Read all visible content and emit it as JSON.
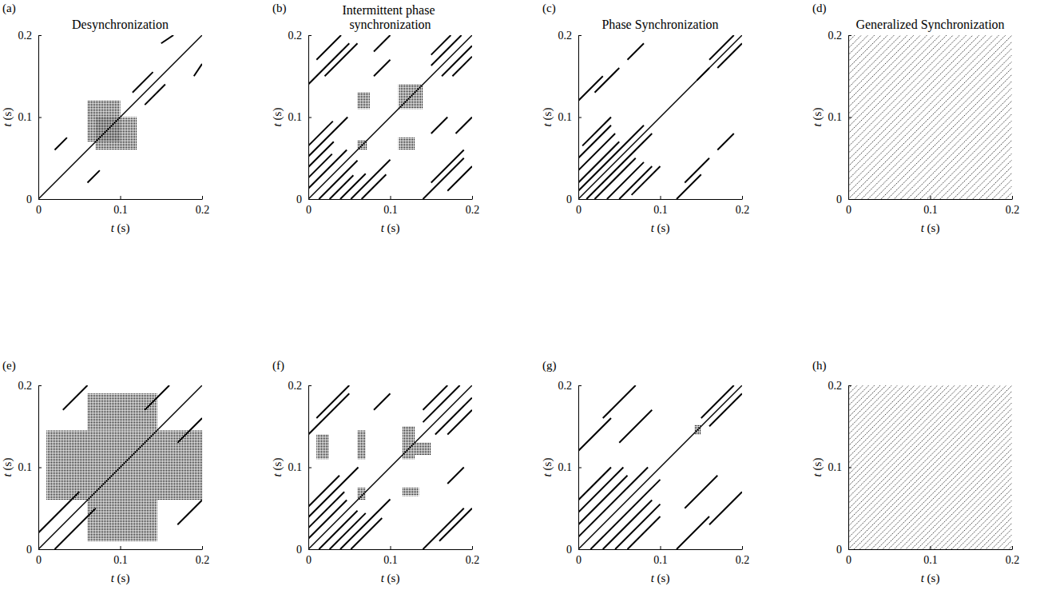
{
  "chart_data": [
    {
      "type": "recurrence",
      "panel_label": "(a)",
      "title": "Desynchronization",
      "x_label": "t (s)",
      "y_label": "t (s)",
      "xlim": [
        0,
        0.2
      ],
      "ylim": [
        0,
        0.2
      ],
      "xticks": [
        0,
        0.1,
        0.2
      ],
      "yticks": [
        0,
        0.1,
        0.2
      ],
      "line_style": "solid",
      "diagonal_offsets": [
        0
      ],
      "segments": [
        [
          0.115,
          0.13,
          0.14,
          0.155
        ],
        [
          0.13,
          0.115,
          0.155,
          0.14
        ],
        [
          0.02,
          0.06,
          0.035,
          0.075
        ],
        [
          0.06,
          0.02,
          0.075,
          0.035
        ],
        [
          0.15,
          0.19,
          0.165,
          0.2
        ],
        [
          0.19,
          0.15,
          0.2,
          0.165
        ]
      ],
      "clusters": [
        [
          0.06,
          0.07,
          0.1,
          0.12
        ],
        [
          0.07,
          0.06,
          0.12,
          0.1
        ]
      ]
    },
    {
      "type": "recurrence",
      "panel_label": "(b)",
      "title": "Intermittent phase synchronization",
      "x_label": "t (s)",
      "y_label": "t (s)",
      "xlim": [
        0,
        0.2
      ],
      "ylim": [
        0,
        0.2
      ],
      "xticks": [
        0,
        0.1,
        0.2
      ],
      "yticks": [
        0,
        0.1,
        0.2
      ],
      "line_style": "solid",
      "diagonal_offsets": [
        0
      ],
      "segments": [
        [
          0.013,
          0,
          0.06,
          0.047
        ],
        [
          0,
          0.013,
          0.047,
          0.06
        ],
        [
          0.026,
          0,
          0.055,
          0.029
        ],
        [
          0,
          0.026,
          0.029,
          0.055
        ],
        [
          0.039,
          0,
          0.07,
          0.031
        ],
        [
          0,
          0.039,
          0.031,
          0.07
        ],
        [
          0.052,
          0,
          0.1,
          0.048
        ],
        [
          0,
          0.052,
          0.048,
          0.1
        ],
        [
          0.065,
          0,
          0.095,
          0.03
        ],
        [
          0,
          0.065,
          0.03,
          0.095
        ],
        [
          0.163,
          0.15,
          0.2,
          0.187
        ],
        [
          0.15,
          0.163,
          0.187,
          0.2
        ],
        [
          0.176,
          0.15,
          0.2,
          0.174
        ],
        [
          0.15,
          0.176,
          0.174,
          0.2
        ],
        [
          0,
          0.14,
          0.05,
          0.19
        ],
        [
          0.01,
          0.17,
          0.04,
          0.2
        ],
        [
          0.02,
          0.15,
          0.06,
          0.19
        ],
        [
          0.14,
          0,
          0.19,
          0.05
        ],
        [
          0.17,
          0.01,
          0.2,
          0.04
        ],
        [
          0.15,
          0.02,
          0.19,
          0.06
        ],
        [
          0.08,
          0.18,
          0.1,
          0.2
        ],
        [
          0.18,
          0.08,
          0.2,
          0.1
        ],
        [
          0.08,
          0.15,
          0.1,
          0.17
        ],
        [
          0.15,
          0.08,
          0.17,
          0.1
        ]
      ],
      "clusters": [
        [
          0.11,
          0.11,
          0.14,
          0.14
        ],
        [
          0.06,
          0.11,
          0.075,
          0.13
        ],
        [
          0.11,
          0.06,
          0.13,
          0.075
        ],
        [
          0.06,
          0.06,
          0.072,
          0.072
        ]
      ]
    },
    {
      "type": "recurrence",
      "panel_label": "(c)",
      "title": "Phase Synchronization",
      "x_label": "t (s)",
      "y_label": "t (s)",
      "xlim": [
        0,
        0.2
      ],
      "ylim": [
        0,
        0.2
      ],
      "xticks": [
        0,
        0.1,
        0.2
      ],
      "yticks": [
        0,
        0.1,
        0.2
      ],
      "line_style": "solid",
      "diagonal_offsets": [
        0
      ],
      "segments": [
        [
          0.01,
          0,
          0.09,
          0.08
        ],
        [
          0,
          0.01,
          0.08,
          0.09
        ],
        [
          0.02,
          0,
          0.07,
          0.05
        ],
        [
          0,
          0.02,
          0.05,
          0.07
        ],
        [
          0.035,
          0,
          0.08,
          0.045
        ],
        [
          0,
          0.035,
          0.045,
          0.08
        ],
        [
          0.05,
          0,
          0.09,
          0.04
        ],
        [
          0,
          0.05,
          0.04,
          0.09
        ],
        [
          0.065,
          0.005,
          0.1,
          0.04
        ],
        [
          0.005,
          0.065,
          0.04,
          0.1
        ],
        [
          0,
          0.12,
          0.03,
          0.15
        ],
        [
          0.12,
          0,
          0.15,
          0.03
        ],
        [
          0.02,
          0.13,
          0.05,
          0.16
        ],
        [
          0.13,
          0.02,
          0.16,
          0.05
        ],
        [
          0.16,
          0.17,
          0.19,
          0.2
        ],
        [
          0.17,
          0.16,
          0.2,
          0.19
        ],
        [
          0.17,
          0.06,
          0.19,
          0.08
        ],
        [
          0.06,
          0.17,
          0.08,
          0.19
        ],
        [
          0.145,
          0.145,
          0.16,
          0.16
        ]
      ]
    },
    {
      "type": "recurrence",
      "panel_label": "(d)",
      "title": "Generalized Synchronization",
      "x_label": "t (s)",
      "y_label": "t (s)",
      "xlim": [
        0,
        0.2
      ],
      "ylim": [
        0,
        0.2
      ],
      "xticks": [
        0,
        0.1,
        0.2
      ],
      "yticks": [
        0,
        0.1,
        0.2
      ],
      "line_style": "dotted",
      "diagonal_offsets": [
        -0.192,
        -0.184,
        -0.176,
        -0.168,
        -0.16,
        -0.152,
        -0.144,
        -0.136,
        -0.128,
        -0.12,
        -0.112,
        -0.104,
        -0.096,
        -0.088,
        -0.08,
        -0.072,
        -0.064,
        -0.056,
        -0.048,
        -0.04,
        -0.032,
        -0.024,
        -0.016,
        -0.008,
        0,
        0.008,
        0.016,
        0.024,
        0.032,
        0.04,
        0.048,
        0.056,
        0.064,
        0.072,
        0.08,
        0.088,
        0.096,
        0.104,
        0.112,
        0.12,
        0.128,
        0.136,
        0.144,
        0.152,
        0.16,
        0.168,
        0.176,
        0.184,
        0.192
      ]
    },
    {
      "type": "recurrence",
      "panel_label": "(e)",
      "x_label": "t (s)",
      "y_label": "t (s)",
      "xlim": [
        0,
        0.2
      ],
      "ylim": [
        0,
        0.2
      ],
      "xticks": [
        0,
        0.1,
        0.2
      ],
      "yticks": [
        0,
        0.1,
        0.2
      ],
      "line_style": "solid",
      "diagonal_offsets": [
        0
      ],
      "segments": [
        [
          0,
          0.02,
          0.05,
          0.07
        ],
        [
          0.02,
          0,
          0.07,
          0.05
        ],
        [
          0.13,
          0.17,
          0.16,
          0.2
        ],
        [
          0.17,
          0.13,
          0.2,
          0.16
        ],
        [
          0.03,
          0.17,
          0.06,
          0.2
        ],
        [
          0.17,
          0.03,
          0.2,
          0.06
        ]
      ],
      "clusters": [
        [
          0.01,
          0.06,
          0.2,
          0.145
        ],
        [
          0.06,
          0.01,
          0.145,
          0.06
        ],
        [
          0.06,
          0.145,
          0.145,
          0.19
        ]
      ]
    },
    {
      "type": "recurrence",
      "panel_label": "(f)",
      "x_label": "t (s)",
      "y_label": "t (s)",
      "xlim": [
        0,
        0.2
      ],
      "ylim": [
        0,
        0.2
      ],
      "xticks": [
        0,
        0.1,
        0.2
      ],
      "yticks": [
        0,
        0.1,
        0.2
      ],
      "line_style": "solid",
      "diagonal_offsets": [
        0
      ],
      "segments": [
        [
          0.013,
          0,
          0.06,
          0.047
        ],
        [
          0,
          0.013,
          0.047,
          0.06
        ],
        [
          0.026,
          0,
          0.07,
          0.044
        ],
        [
          0,
          0.026,
          0.044,
          0.07
        ],
        [
          0.039,
          0,
          0.1,
          0.061
        ],
        [
          0,
          0.039,
          0.061,
          0.1
        ],
        [
          0.052,
          0,
          0.09,
          0.038
        ],
        [
          0,
          0.052,
          0.038,
          0.09
        ],
        [
          0.155,
          0.14,
          0.2,
          0.185
        ],
        [
          0.14,
          0.155,
          0.185,
          0.2
        ],
        [
          0.17,
          0.14,
          0.2,
          0.17
        ],
        [
          0.14,
          0.17,
          0.17,
          0.2
        ],
        [
          0.14,
          0,
          0.19,
          0.05
        ],
        [
          0,
          0.14,
          0.05,
          0.19
        ],
        [
          0.16,
          0.01,
          0.2,
          0.05
        ],
        [
          0.01,
          0.16,
          0.05,
          0.2
        ],
        [
          0.08,
          0.17,
          0.1,
          0.19
        ],
        [
          0.17,
          0.08,
          0.19,
          0.1
        ]
      ],
      "clusters": [
        [
          0.01,
          0.11,
          0.025,
          0.14
        ],
        [
          0.06,
          0.11,
          0.07,
          0.145
        ],
        [
          0.115,
          0.11,
          0.13,
          0.15
        ],
        [
          0.13,
          0.115,
          0.15,
          0.13
        ],
        [
          0.06,
          0.06,
          0.07,
          0.075
        ],
        [
          0.115,
          0.065,
          0.135,
          0.075
        ]
      ]
    },
    {
      "type": "recurrence",
      "panel_label": "(g)",
      "x_label": "t (s)",
      "y_label": "t (s)",
      "xlim": [
        0,
        0.2
      ],
      "ylim": [
        0,
        0.2
      ],
      "xticks": [
        0,
        0.1,
        0.2
      ],
      "yticks": [
        0,
        0.1,
        0.2
      ],
      "line_style": "solid",
      "diagonal_offsets": [
        0
      ],
      "segments": [
        [
          0.015,
          0,
          0.1,
          0.085
        ],
        [
          0,
          0.015,
          0.085,
          0.1
        ],
        [
          0.03,
          0,
          0.09,
          0.06
        ],
        [
          0,
          0.03,
          0.06,
          0.09
        ],
        [
          0.045,
          0,
          0.1,
          0.055
        ],
        [
          0,
          0.045,
          0.055,
          0.1
        ],
        [
          0.06,
          0,
          0.1,
          0.04
        ],
        [
          0,
          0.06,
          0.04,
          0.1
        ],
        [
          0,
          0.12,
          0.04,
          0.16
        ],
        [
          0.12,
          0,
          0.16,
          0.04
        ],
        [
          0.03,
          0.16,
          0.07,
          0.2
        ],
        [
          0.16,
          0.03,
          0.2,
          0.07
        ],
        [
          0.05,
          0.13,
          0.09,
          0.17
        ],
        [
          0.13,
          0.05,
          0.17,
          0.09
        ],
        [
          0.15,
          0.16,
          0.19,
          0.2
        ],
        [
          0.16,
          0.15,
          0.2,
          0.19
        ]
      ],
      "clusters": [
        [
          0.142,
          0.14,
          0.15,
          0.152
        ]
      ]
    },
    {
      "type": "recurrence",
      "panel_label": "(h)",
      "x_label": "t (s)",
      "y_label": "t (s)",
      "xlim": [
        0,
        0.2
      ],
      "ylim": [
        0,
        0.2
      ],
      "xticks": [
        0,
        0.1,
        0.2
      ],
      "yticks": [
        0,
        0.1,
        0.2
      ],
      "line_style": "dotted",
      "diagonal_offsets": [
        -0.196,
        -0.189,
        -0.182,
        -0.175,
        -0.168,
        -0.161,
        -0.154,
        -0.147,
        -0.14,
        -0.133,
        -0.126,
        -0.119,
        -0.112,
        -0.105,
        -0.098,
        -0.091,
        -0.084,
        -0.077,
        -0.07,
        -0.063,
        -0.056,
        -0.049,
        -0.042,
        -0.035,
        -0.028,
        -0.021,
        -0.014,
        -0.007,
        0,
        0.007,
        0.014,
        0.021,
        0.028,
        0.035,
        0.042,
        0.049,
        0.056,
        0.063,
        0.07,
        0.077,
        0.084,
        0.091,
        0.098,
        0.105,
        0.112,
        0.119,
        0.126,
        0.133,
        0.14,
        0.147,
        0.154,
        0.161,
        0.168,
        0.175,
        0.182,
        0.189,
        0.196
      ]
    }
  ]
}
